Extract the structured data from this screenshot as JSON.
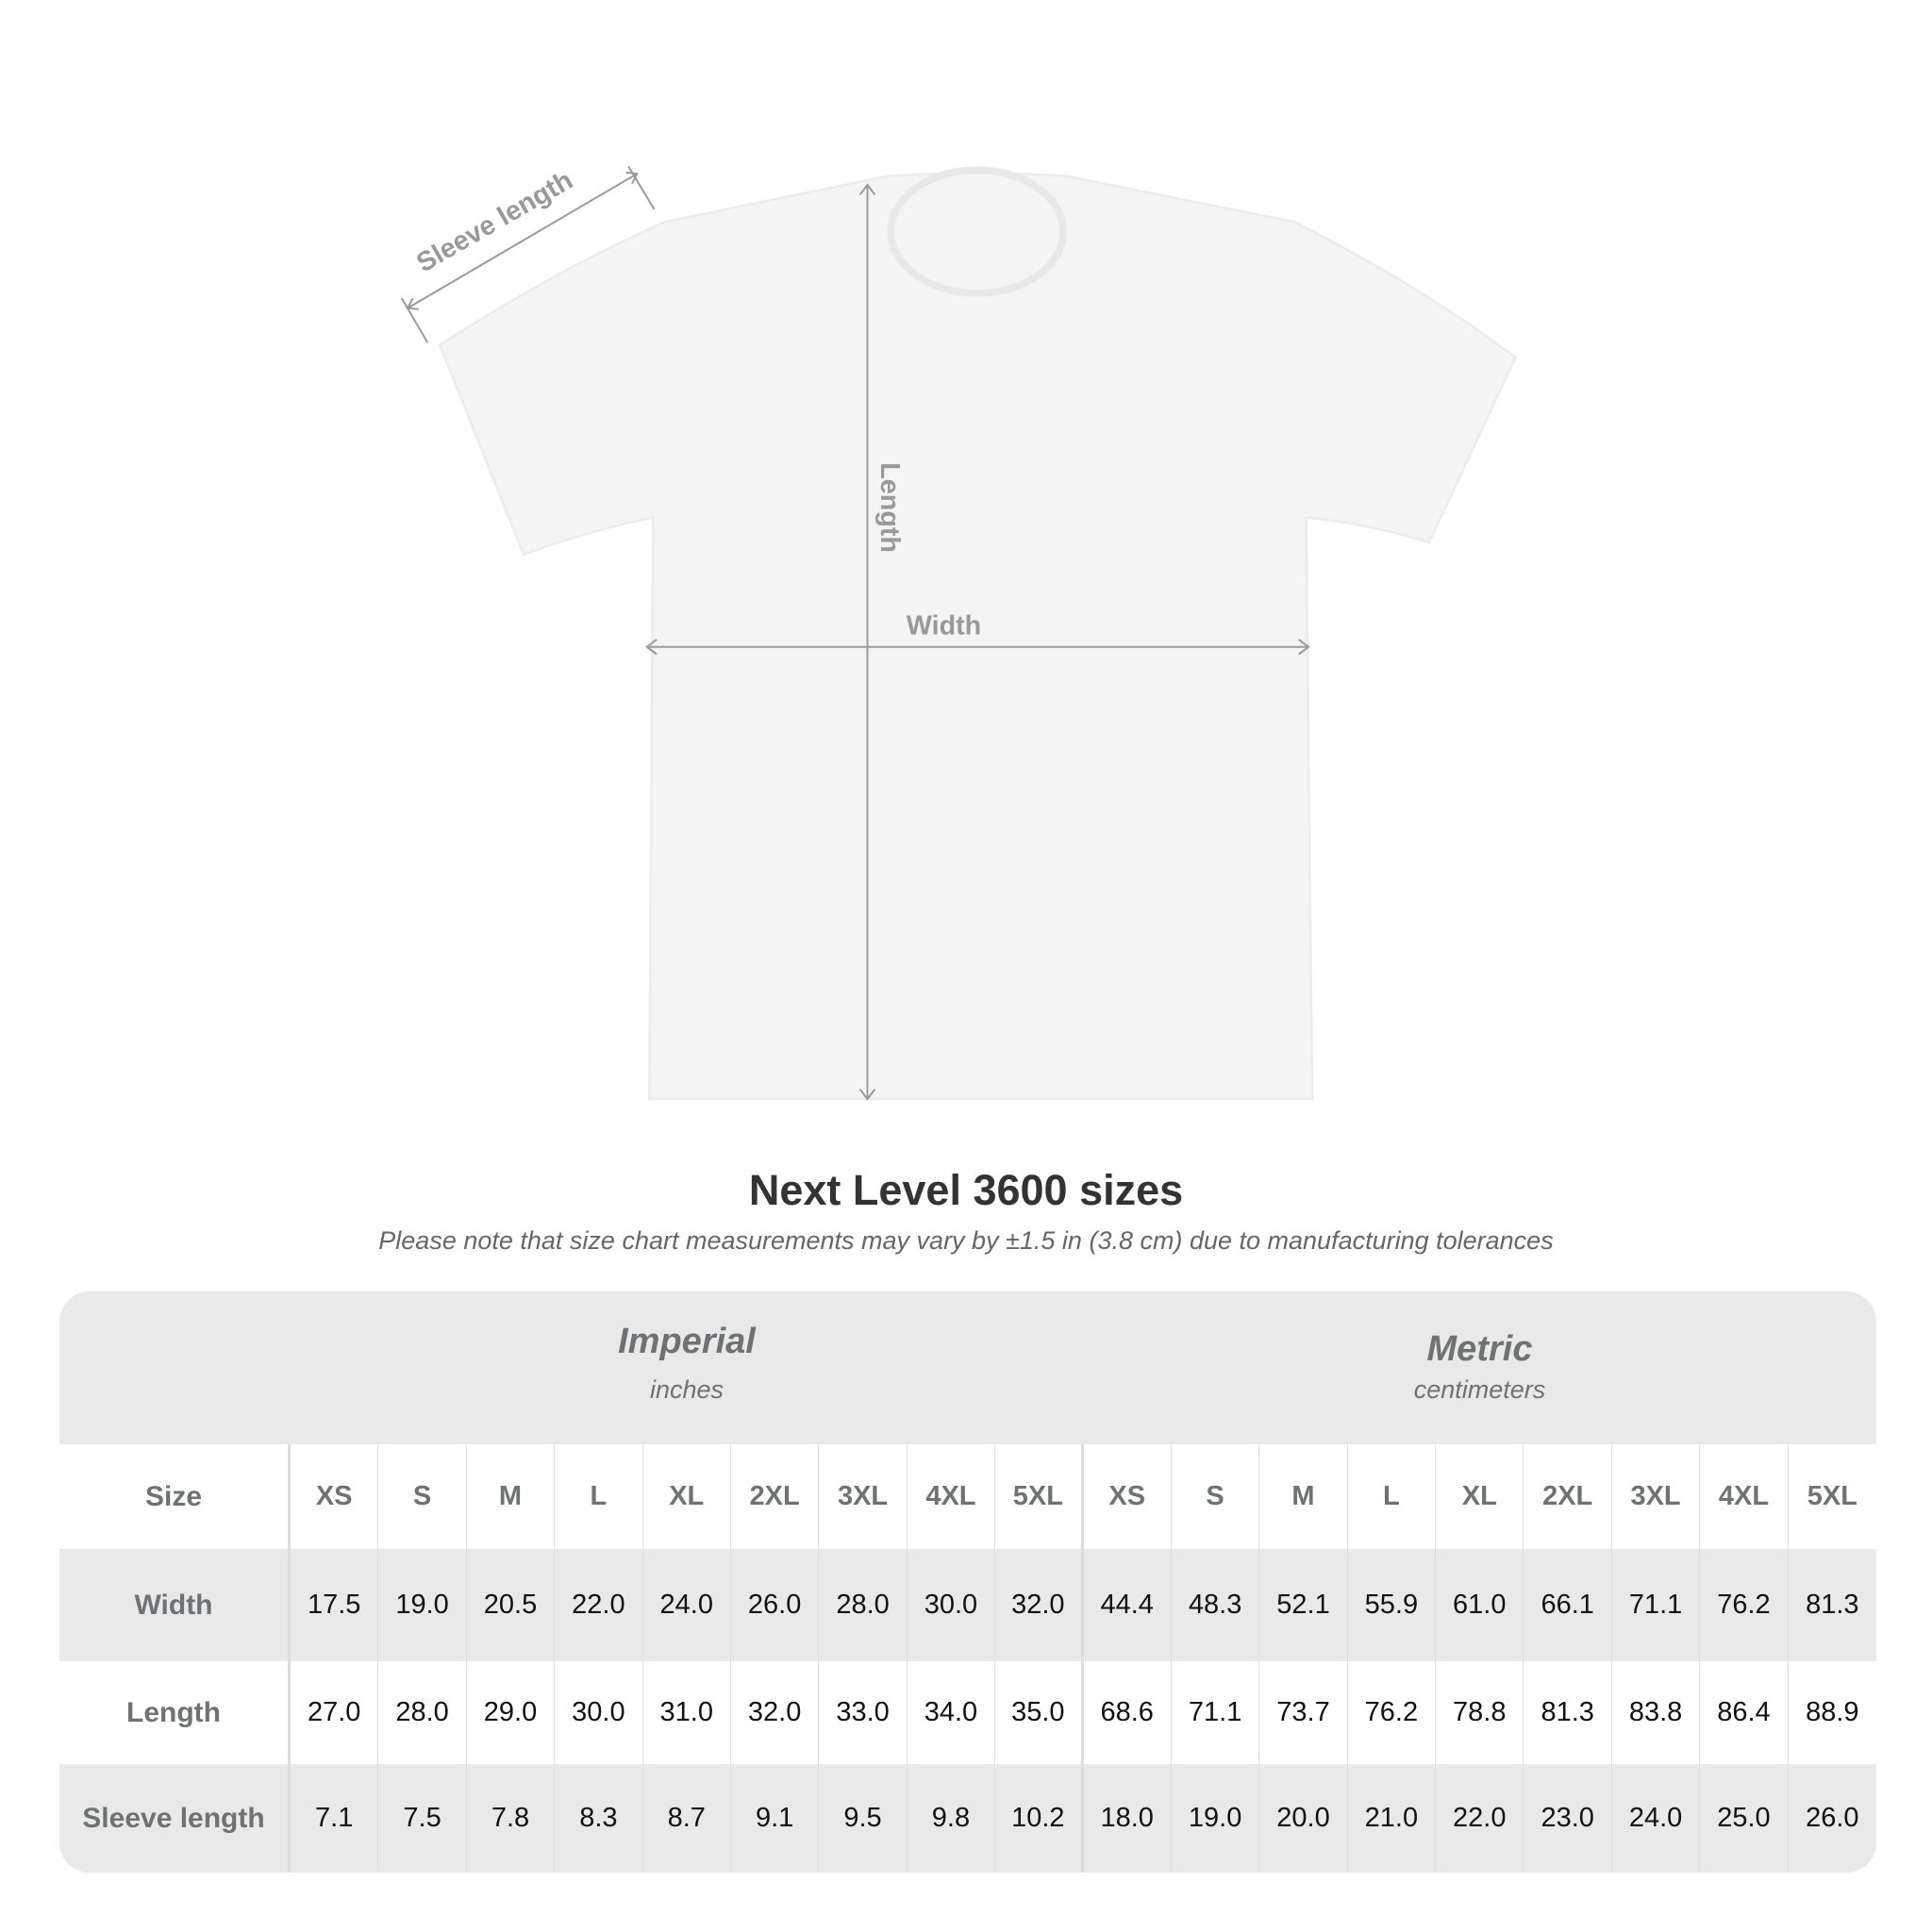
{
  "diagram": {
    "labels": {
      "sleeve": "Sleeve length",
      "length": "Length",
      "width": "Width"
    },
    "shirt_color": "#f4f4f4",
    "arrow_color": "#999999"
  },
  "title": "Next Level 3600 sizes",
  "subtitle": "Please note that size chart measurements may vary by ±1.5 in (3.8 cm) due to manufacturing tolerances",
  "table": {
    "imperial": {
      "name": "Imperial",
      "unit": "inches"
    },
    "metric": {
      "name": "Metric",
      "unit": "centimeters"
    },
    "size_label": "Size",
    "sizes": [
      "XS",
      "S",
      "M",
      "L",
      "XL",
      "2XL",
      "3XL",
      "4XL",
      "5XL"
    ],
    "rows": [
      {
        "label": "Width",
        "imperial": [
          "17.5",
          "19.0",
          "20.5",
          "22.0",
          "24.0",
          "26.0",
          "28.0",
          "30.0",
          "32.0"
        ],
        "metric": [
          "44.4",
          "48.3",
          "52.1",
          "55.9",
          "61.0",
          "66.1",
          "71.1",
          "76.2",
          "81.3"
        ]
      },
      {
        "label": "Length",
        "imperial": [
          "27.0",
          "28.0",
          "29.0",
          "30.0",
          "31.0",
          "32.0",
          "33.0",
          "34.0",
          "35.0"
        ],
        "metric": [
          "68.6",
          "71.1",
          "73.7",
          "76.2",
          "78.8",
          "81.3",
          "83.8",
          "86.4",
          "88.9"
        ]
      },
      {
        "label": "Sleeve length",
        "imperial": [
          "7.1",
          "7.5",
          "7.8",
          "8.3",
          "8.7",
          "9.1",
          "9.5",
          "9.8",
          "10.2"
        ],
        "metric": [
          "18.0",
          "19.0",
          "20.0",
          "21.0",
          "22.0",
          "23.0",
          "24.0",
          "25.0",
          "26.0"
        ]
      }
    ]
  }
}
